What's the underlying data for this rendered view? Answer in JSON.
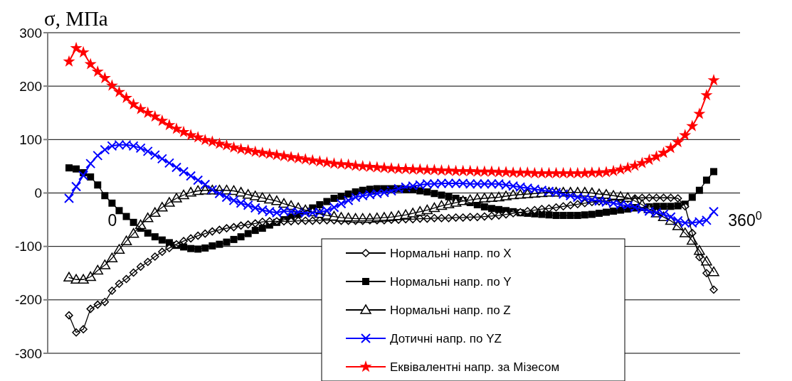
{
  "chart_data": {
    "type": "line",
    "ylabel": "σ, МПа",
    "annotations": [
      "0",
      "360$^{0}$"
    ],
    "categories": [
      null,
      null,
      null,
      null,
      null,
      null,
      null,
      null,
      null,
      null,
      null,
      null,
      null,
      null,
      null,
      null,
      null,
      null,
      null,
      null,
      null,
      null,
      null,
      null,
      null,
      null,
      null,
      null,
      null,
      null,
      null,
      null,
      null,
      null,
      null,
      null,
      null,
      null,
      null,
      null,
      null,
      null,
      null,
      null,
      null,
      null,
      null,
      null,
      null,
      null,
      null,
      null,
      null,
      null,
      null,
      null,
      null,
      null,
      null,
      null,
      null,
      null,
      null,
      null,
      null,
      null,
      null,
      null,
      null,
      null,
      null,
      null,
      null,
      null,
      null,
      null,
      null,
      null,
      null,
      null,
      null,
      null,
      null,
      null,
      null,
      null,
      null,
      null,
      null,
      null,
      null
    ],
    "series": [
      {
        "name": "Нормальні напр. по X",
        "color": "#000000",
        "marker": "diamond",
        "values": [
          -229,
          -261,
          -255,
          -217,
          -209,
          -204,
          -183,
          -170,
          -161,
          -149,
          -138,
          -129,
          -119,
          -110,
          -103,
          -96,
          -90,
          -85,
          -80,
          -76,
          -72,
          -69,
          -66,
          -64,
          -61,
          -59,
          -57,
          -54,
          -53,
          -53,
          -53,
          -53,
          -52,
          -52,
          -52,
          -51,
          -51,
          -51,
          -52,
          -52,
          -52,
          -52,
          -51,
          -51,
          -51,
          -50,
          -50,
          -49,
          -49,
          -48,
          -48,
          -47,
          -47,
          -47,
          -46,
          -46,
          -45,
          -45,
          -44,
          -43,
          -42,
          -40,
          -38,
          -36,
          -34,
          -32,
          -30,
          -29,
          -27,
          -25,
          -23,
          -21,
          -19,
          -17,
          -16,
          -15,
          -13,
          -12,
          -11,
          -10,
          -9,
          -9,
          -9,
          -9,
          -9,
          -10,
          -25,
          -75,
          -120,
          -150,
          -181
        ]
      },
      {
        "name": "Нормальні напр. по Y",
        "color": "#000000",
        "marker": "square",
        "values": [
          47,
          45,
          38,
          30,
          15,
          -5,
          -19,
          -33,
          -44,
          -55,
          -66,
          -75,
          -82,
          -88,
          -93,
          -98,
          -101,
          -104,
          -105,
          -103,
          -99,
          -96,
          -92,
          -87,
          -82,
          -76,
          -70,
          -66,
          -60,
          -55,
          -50,
          -45,
          -40,
          -34,
          -28,
          -22,
          -16,
          -10,
          -6,
          -2,
          2,
          5,
          7,
          8,
          8,
          8,
          8,
          7,
          6,
          4,
          2,
          -1,
          -4,
          -7,
          -10,
          -14,
          -18,
          -22,
          -26,
          -29,
          -31,
          -33,
          -35,
          -37,
          -38,
          -39,
          -40,
          -41,
          -42,
          -42,
          -42,
          -42,
          -41,
          -40,
          -38,
          -36,
          -34,
          -32,
          -30,
          -28,
          -27,
          -26,
          -25,
          -25,
          -25,
          -24,
          -21,
          -8,
          5,
          24,
          40
        ]
      },
      {
        "name": "Нормальні напр. по Z",
        "color": "#000000",
        "marker": "triangle",
        "values": [
          -158,
          -162,
          -162,
          -157,
          -145,
          -135,
          -122,
          -106,
          -90,
          -76,
          -60,
          -47,
          -37,
          -27,
          -18,
          -10,
          -4,
          1,
          4,
          5,
          5,
          5,
          5,
          4,
          1,
          -3,
          -6,
          -9,
          -12,
          -15,
          -20,
          -24,
          -28,
          -32,
          -36,
          -39,
          -42,
          -44,
          -46,
          -47,
          -48,
          -48,
          -48,
          -47,
          -46,
          -45,
          -43,
          -41,
          -38,
          -35,
          -32,
          -28,
          -24,
          -21,
          -18,
          -15,
          -13,
          -11,
          -10,
          -9,
          -8,
          -6,
          -4,
          -3,
          -2,
          -1,
          0,
          1,
          1,
          1,
          1,
          1,
          1,
          0,
          -2,
          -3,
          -5,
          -7,
          -9,
          -15,
          -22,
          -30,
          -38,
          -45,
          -52,
          -62,
          -75,
          -89,
          -108,
          -128,
          -148
        ]
      },
      {
        "name": "Дотичні напр. по YZ",
        "color": "#0000ff",
        "marker": "cross",
        "values": [
          -10,
          12,
          33,
          55,
          70,
          81,
          88,
          90,
          90,
          88,
          84,
          78,
          71,
          64,
          56,
          48,
          40,
          32,
          24,
          16,
          6,
          -1,
          -8,
          -14,
          -19,
          -23,
          -28,
          -32,
          -35,
          -37,
          -34,
          -35,
          -36,
          -37,
          -37,
          -36,
          -33,
          -27,
          -20,
          -14,
          -8,
          -5,
          -3,
          -1,
          1,
          4,
          8,
          11,
          13,
          15,
          17,
          17,
          18,
          18,
          18,
          18,
          17,
          17,
          17,
          17,
          17,
          15,
          13,
          11,
          9,
          7,
          5,
          3,
          1,
          -2,
          -5,
          -8,
          -10,
          -13,
          -15,
          -17,
          -19,
          -22,
          -24,
          -27,
          -30,
          -34,
          -37,
          -40,
          -45,
          -52,
          -56,
          -56,
          -54,
          -51,
          -35
        ]
      },
      {
        "name": "Еквівалентні напр. за Мізесом",
        "color": "#ff0000",
        "marker": "star",
        "values": [
          246,
          271,
          263,
          241,
          227,
          215,
          201,
          189,
          178,
          166,
          157,
          150,
          143,
          135,
          127,
          120,
          114,
          108,
          104,
          99,
          96,
          92,
          89,
          85,
          82,
          80,
          77,
          75,
          73,
          71,
          69,
          67,
          65,
          63,
          61,
          59,
          57,
          55,
          54,
          53,
          51,
          50,
          49,
          48,
          47,
          46,
          45,
          45,
          44,
          44,
          43,
          43,
          42,
          42,
          41,
          41,
          41,
          40,
          40,
          40,
          39,
          39,
          38,
          38,
          38,
          37,
          37,
          37,
          37,
          37,
          37,
          37,
          37,
          38,
          38,
          39,
          41,
          44,
          47,
          51,
          56,
          62,
          68,
          75,
          84,
          95,
          108,
          125,
          148,
          183,
          211
        ]
      }
    ],
    "ylim": [
      -300,
      300
    ],
    "yticks": [
      -300,
      -200,
      -100,
      0,
      100,
      200,
      300
    ],
    "grid": "y",
    "legend": "bottom"
  }
}
